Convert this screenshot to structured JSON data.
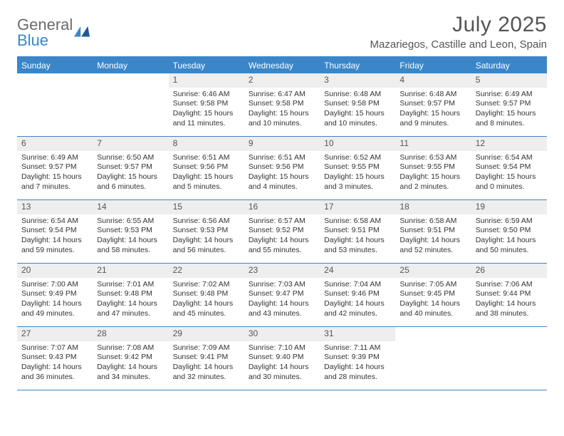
{
  "brand": {
    "part1": "General",
    "part2": "Blue"
  },
  "title": "July 2025",
  "location": "Mazariegos, Castille and Leon, Spain",
  "colors": {
    "accent": "#3a86c8",
    "header_bg": "#3a86c8",
    "daynum_bg": "#eeeeee",
    "text": "#333333",
    "muted": "#555555"
  },
  "weekdays": [
    "Sunday",
    "Monday",
    "Tuesday",
    "Wednesday",
    "Thursday",
    "Friday",
    "Saturday"
  ],
  "weeks": [
    [
      null,
      null,
      {
        "n": "1",
        "sr": "6:46 AM",
        "ss": "9:58 PM",
        "dl": "15 hours and 11 minutes."
      },
      {
        "n": "2",
        "sr": "6:47 AM",
        "ss": "9:58 PM",
        "dl": "15 hours and 10 minutes."
      },
      {
        "n": "3",
        "sr": "6:48 AM",
        "ss": "9:58 PM",
        "dl": "15 hours and 10 minutes."
      },
      {
        "n": "4",
        "sr": "6:48 AM",
        "ss": "9:57 PM",
        "dl": "15 hours and 9 minutes."
      },
      {
        "n": "5",
        "sr": "6:49 AM",
        "ss": "9:57 PM",
        "dl": "15 hours and 8 minutes."
      }
    ],
    [
      {
        "n": "6",
        "sr": "6:49 AM",
        "ss": "9:57 PM",
        "dl": "15 hours and 7 minutes."
      },
      {
        "n": "7",
        "sr": "6:50 AM",
        "ss": "9:57 PM",
        "dl": "15 hours and 6 minutes."
      },
      {
        "n": "8",
        "sr": "6:51 AM",
        "ss": "9:56 PM",
        "dl": "15 hours and 5 minutes."
      },
      {
        "n": "9",
        "sr": "6:51 AM",
        "ss": "9:56 PM",
        "dl": "15 hours and 4 minutes."
      },
      {
        "n": "10",
        "sr": "6:52 AM",
        "ss": "9:55 PM",
        "dl": "15 hours and 3 minutes."
      },
      {
        "n": "11",
        "sr": "6:53 AM",
        "ss": "9:55 PM",
        "dl": "15 hours and 2 minutes."
      },
      {
        "n": "12",
        "sr": "6:54 AM",
        "ss": "9:54 PM",
        "dl": "15 hours and 0 minutes."
      }
    ],
    [
      {
        "n": "13",
        "sr": "6:54 AM",
        "ss": "9:54 PM",
        "dl": "14 hours and 59 minutes."
      },
      {
        "n": "14",
        "sr": "6:55 AM",
        "ss": "9:53 PM",
        "dl": "14 hours and 58 minutes."
      },
      {
        "n": "15",
        "sr": "6:56 AM",
        "ss": "9:53 PM",
        "dl": "14 hours and 56 minutes."
      },
      {
        "n": "16",
        "sr": "6:57 AM",
        "ss": "9:52 PM",
        "dl": "14 hours and 55 minutes."
      },
      {
        "n": "17",
        "sr": "6:58 AM",
        "ss": "9:51 PM",
        "dl": "14 hours and 53 minutes."
      },
      {
        "n": "18",
        "sr": "6:58 AM",
        "ss": "9:51 PM",
        "dl": "14 hours and 52 minutes."
      },
      {
        "n": "19",
        "sr": "6:59 AM",
        "ss": "9:50 PM",
        "dl": "14 hours and 50 minutes."
      }
    ],
    [
      {
        "n": "20",
        "sr": "7:00 AM",
        "ss": "9:49 PM",
        "dl": "14 hours and 49 minutes."
      },
      {
        "n": "21",
        "sr": "7:01 AM",
        "ss": "9:48 PM",
        "dl": "14 hours and 47 minutes."
      },
      {
        "n": "22",
        "sr": "7:02 AM",
        "ss": "9:48 PM",
        "dl": "14 hours and 45 minutes."
      },
      {
        "n": "23",
        "sr": "7:03 AM",
        "ss": "9:47 PM",
        "dl": "14 hours and 43 minutes."
      },
      {
        "n": "24",
        "sr": "7:04 AM",
        "ss": "9:46 PM",
        "dl": "14 hours and 42 minutes."
      },
      {
        "n": "25",
        "sr": "7:05 AM",
        "ss": "9:45 PM",
        "dl": "14 hours and 40 minutes."
      },
      {
        "n": "26",
        "sr": "7:06 AM",
        "ss": "9:44 PM",
        "dl": "14 hours and 38 minutes."
      }
    ],
    [
      {
        "n": "27",
        "sr": "7:07 AM",
        "ss": "9:43 PM",
        "dl": "14 hours and 36 minutes."
      },
      {
        "n": "28",
        "sr": "7:08 AM",
        "ss": "9:42 PM",
        "dl": "14 hours and 34 minutes."
      },
      {
        "n": "29",
        "sr": "7:09 AM",
        "ss": "9:41 PM",
        "dl": "14 hours and 32 minutes."
      },
      {
        "n": "30",
        "sr": "7:10 AM",
        "ss": "9:40 PM",
        "dl": "14 hours and 30 minutes."
      },
      {
        "n": "31",
        "sr": "7:11 AM",
        "ss": "9:39 PM",
        "dl": "14 hours and 28 minutes."
      },
      null,
      null
    ]
  ],
  "labels": {
    "sunrise": "Sunrise: ",
    "sunset": "Sunset: ",
    "daylight": "Daylight: "
  }
}
